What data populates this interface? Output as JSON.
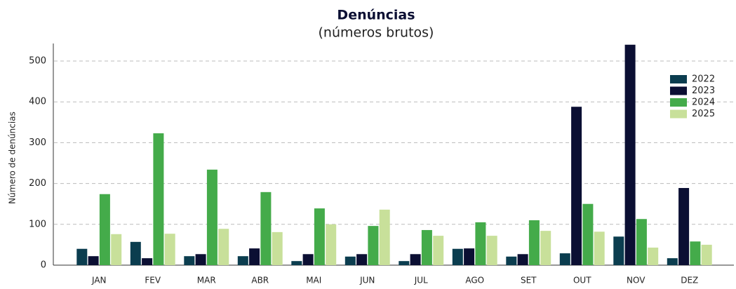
{
  "chart_data": {
    "type": "bar",
    "title": "Denúncias",
    "subtitle": "(números brutos)",
    "y_label": "Número de denúncias",
    "categories": [
      "JAN",
      "FEV",
      "MAR",
      "ABR",
      "MAI",
      "JUN",
      "JUL",
      "AGO",
      "SET",
      "OUT",
      "NOV",
      "DEZ"
    ],
    "series": [
      {
        "name": "2022",
        "color": "#0b3d4f",
        "values": [
          40,
          57,
          22,
          22,
          10,
          21,
          10,
          40,
          21,
          29,
          70,
          17
        ]
      },
      {
        "name": "2023",
        "color": "#0b0f33",
        "values": [
          22,
          17,
          27,
          41,
          27,
          27,
          27,
          41,
          27,
          388,
          540,
          189
        ]
      },
      {
        "name": "2024",
        "color": "#44ab4a",
        "values": [
          174,
          323,
          234,
          179,
          139,
          96,
          86,
          105,
          110,
          150,
          113,
          58
        ]
      },
      {
        "name": "2025",
        "color": "#c8e09a",
        "values": [
          76,
          77,
          89,
          81,
          100,
          136,
          72,
          72,
          84,
          82,
          43,
          50
        ]
      }
    ],
    "ylim": [
      0,
      543
    ],
    "yticks": [
      0,
      100,
      200,
      300,
      400,
      500
    ],
    "grid": true,
    "legend": "upper right"
  }
}
